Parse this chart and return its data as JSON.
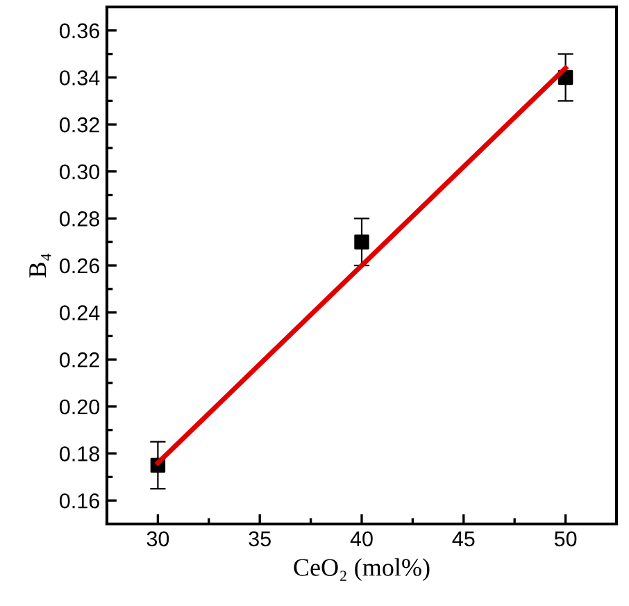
{
  "chart_data": {
    "type": "scatter",
    "xlabel": "CeO₂ (mol%)",
    "ylabel": "B₄",
    "x": [
      30,
      40,
      50
    ],
    "series": [
      {
        "color": "#000000",
        "values": [
          0.175,
          0.27,
          0.34
        ],
        "errors": [
          0.01,
          0.01,
          0.01
        ],
        "marker": "square"
      },
      {
        "type": "line",
        "color": "#e00000",
        "x": [
          30,
          50
        ],
        "values": [
          0.176,
          0.344
        ],
        "marker": "none",
        "line_style": "solid"
      }
    ],
    "xlim": [
      27.5,
      52.5
    ],
    "ylim": [
      0.15,
      0.37
    ],
    "xticks": [
      30,
      {
        "value": 32.5,
        "label": null
      },
      35,
      {
        "value": 37.5,
        "label": null
      },
      40,
      {
        "value": 42.5,
        "label": null
      },
      45,
      {
        "value": 47.5,
        "label": null
      },
      50
    ],
    "yticks": [
      {
        "value": 0.15,
        "label": null
      },
      0.16,
      {
        "value": 0.17,
        "label": null
      },
      0.18,
      {
        "value": 0.19,
        "label": null
      },
      {
        "value": 0.2,
        "label": "0.20"
      },
      {
        "value": 0.21,
        "label": null
      },
      0.22,
      {
        "value": 0.23,
        "label": null
      },
      0.24,
      {
        "value": 0.25,
        "label": null
      },
      0.26,
      {
        "value": 0.27,
        "label": null
      },
      0.28,
      {
        "value": 0.29,
        "label": null
      },
      {
        "value": 0.3,
        "label": "0.30"
      },
      {
        "value": 0.31,
        "label": null
      },
      0.32,
      {
        "value": 0.33,
        "label": null
      },
      0.34,
      {
        "value": 0.35,
        "label": null
      },
      0.36
    ],
    "grid": false,
    "legend": false
  }
}
